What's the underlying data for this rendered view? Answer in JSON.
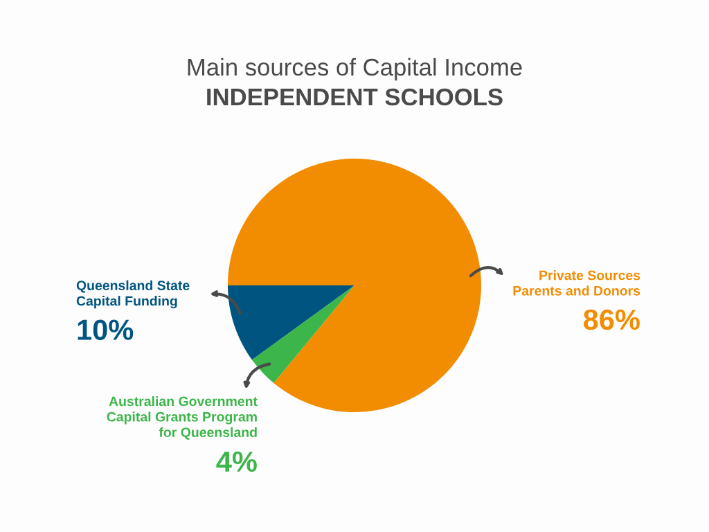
{
  "chart_data": {
    "type": "pie",
    "title": "Main sources of Capital Income",
    "subtitle": "INDEPENDENT SCHOOLS",
    "categories": [
      "Queensland State\nCapital Funding",
      "Australian Government\nCapital Grants Program\nfor Queensland",
      "Private Sources\nParents and Donors"
    ],
    "values": [
      10,
      4,
      86
    ],
    "colors": [
      "#005580",
      "#3cb54a",
      "#f28c00"
    ],
    "value_labels": [
      "10%",
      "4%",
      "86%"
    ]
  }
}
